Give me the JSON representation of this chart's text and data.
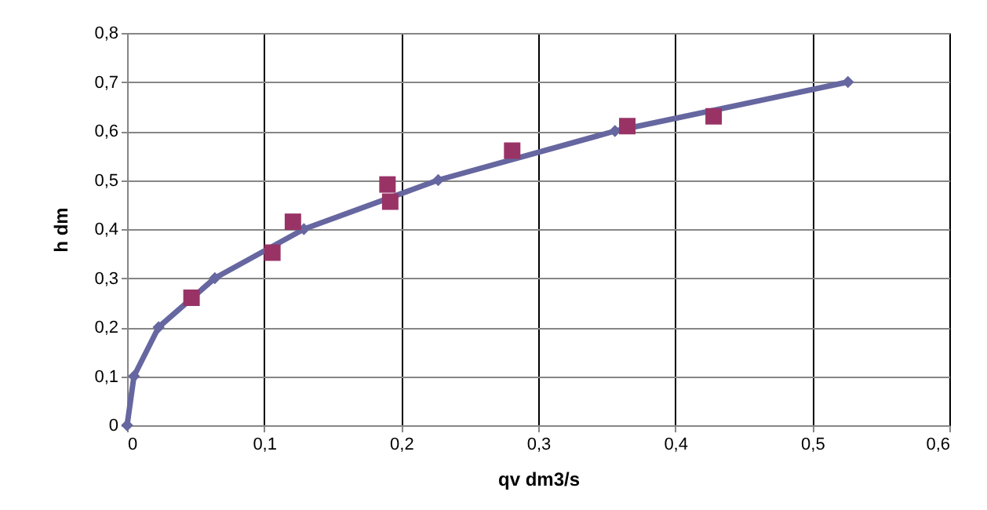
{
  "chart_data": {
    "type": "line",
    "xlabel": "qv dm3/s",
    "ylabel": "h dm",
    "xlim": [
      0,
      0.6
    ],
    "ylim": [
      0,
      0.8
    ],
    "xticks": [
      0,
      {
        "value": 0.1,
        "label": "0,1"
      },
      {
        "value": 0.2,
        "label": "0,2"
      },
      {
        "value": 0.3,
        "label": "0,3"
      },
      {
        "value": 0.4,
        "label": "0,4"
      },
      {
        "value": 0.5,
        "label": "0,5"
      },
      {
        "value": 0.6,
        "label": "0,6"
      }
    ],
    "yticks": [
      0,
      {
        "value": 0.1,
        "label": "0,1"
      },
      {
        "value": 0.2,
        "label": "0,2"
      },
      {
        "value": 0.3,
        "label": "0,3"
      },
      {
        "value": 0.4,
        "label": "0,4"
      },
      {
        "value": 0.5,
        "label": "0,5"
      },
      {
        "value": 0.6,
        "label": "0,6"
      },
      {
        "value": 0.7,
        "label": "0,7"
      },
      {
        "value": 0.8,
        "label": "0,8"
      }
    ],
    "grid": true,
    "series": [
      {
        "marker": "diamond",
        "color": "#6666a0",
        "x": [
          0,
          0.005,
          0.023,
          0.064,
          0.129,
          0.227,
          0.356,
          0.526
        ],
        "values": [
          0,
          0.1,
          0.2,
          0.3,
          0.4,
          0.5,
          0.6,
          0.7
        ]
      },
      {
        "type": "scatter",
        "marker": "square",
        "color": "#993366",
        "x": [
          0.047,
          0.106,
          0.121,
          0.19,
          0.192,
          0.281,
          0.365,
          0.428
        ],
        "values": [
          0.26,
          0.352,
          0.415,
          0.491,
          0.456,
          0.56,
          0.61,
          0.63
        ]
      }
    ]
  }
}
